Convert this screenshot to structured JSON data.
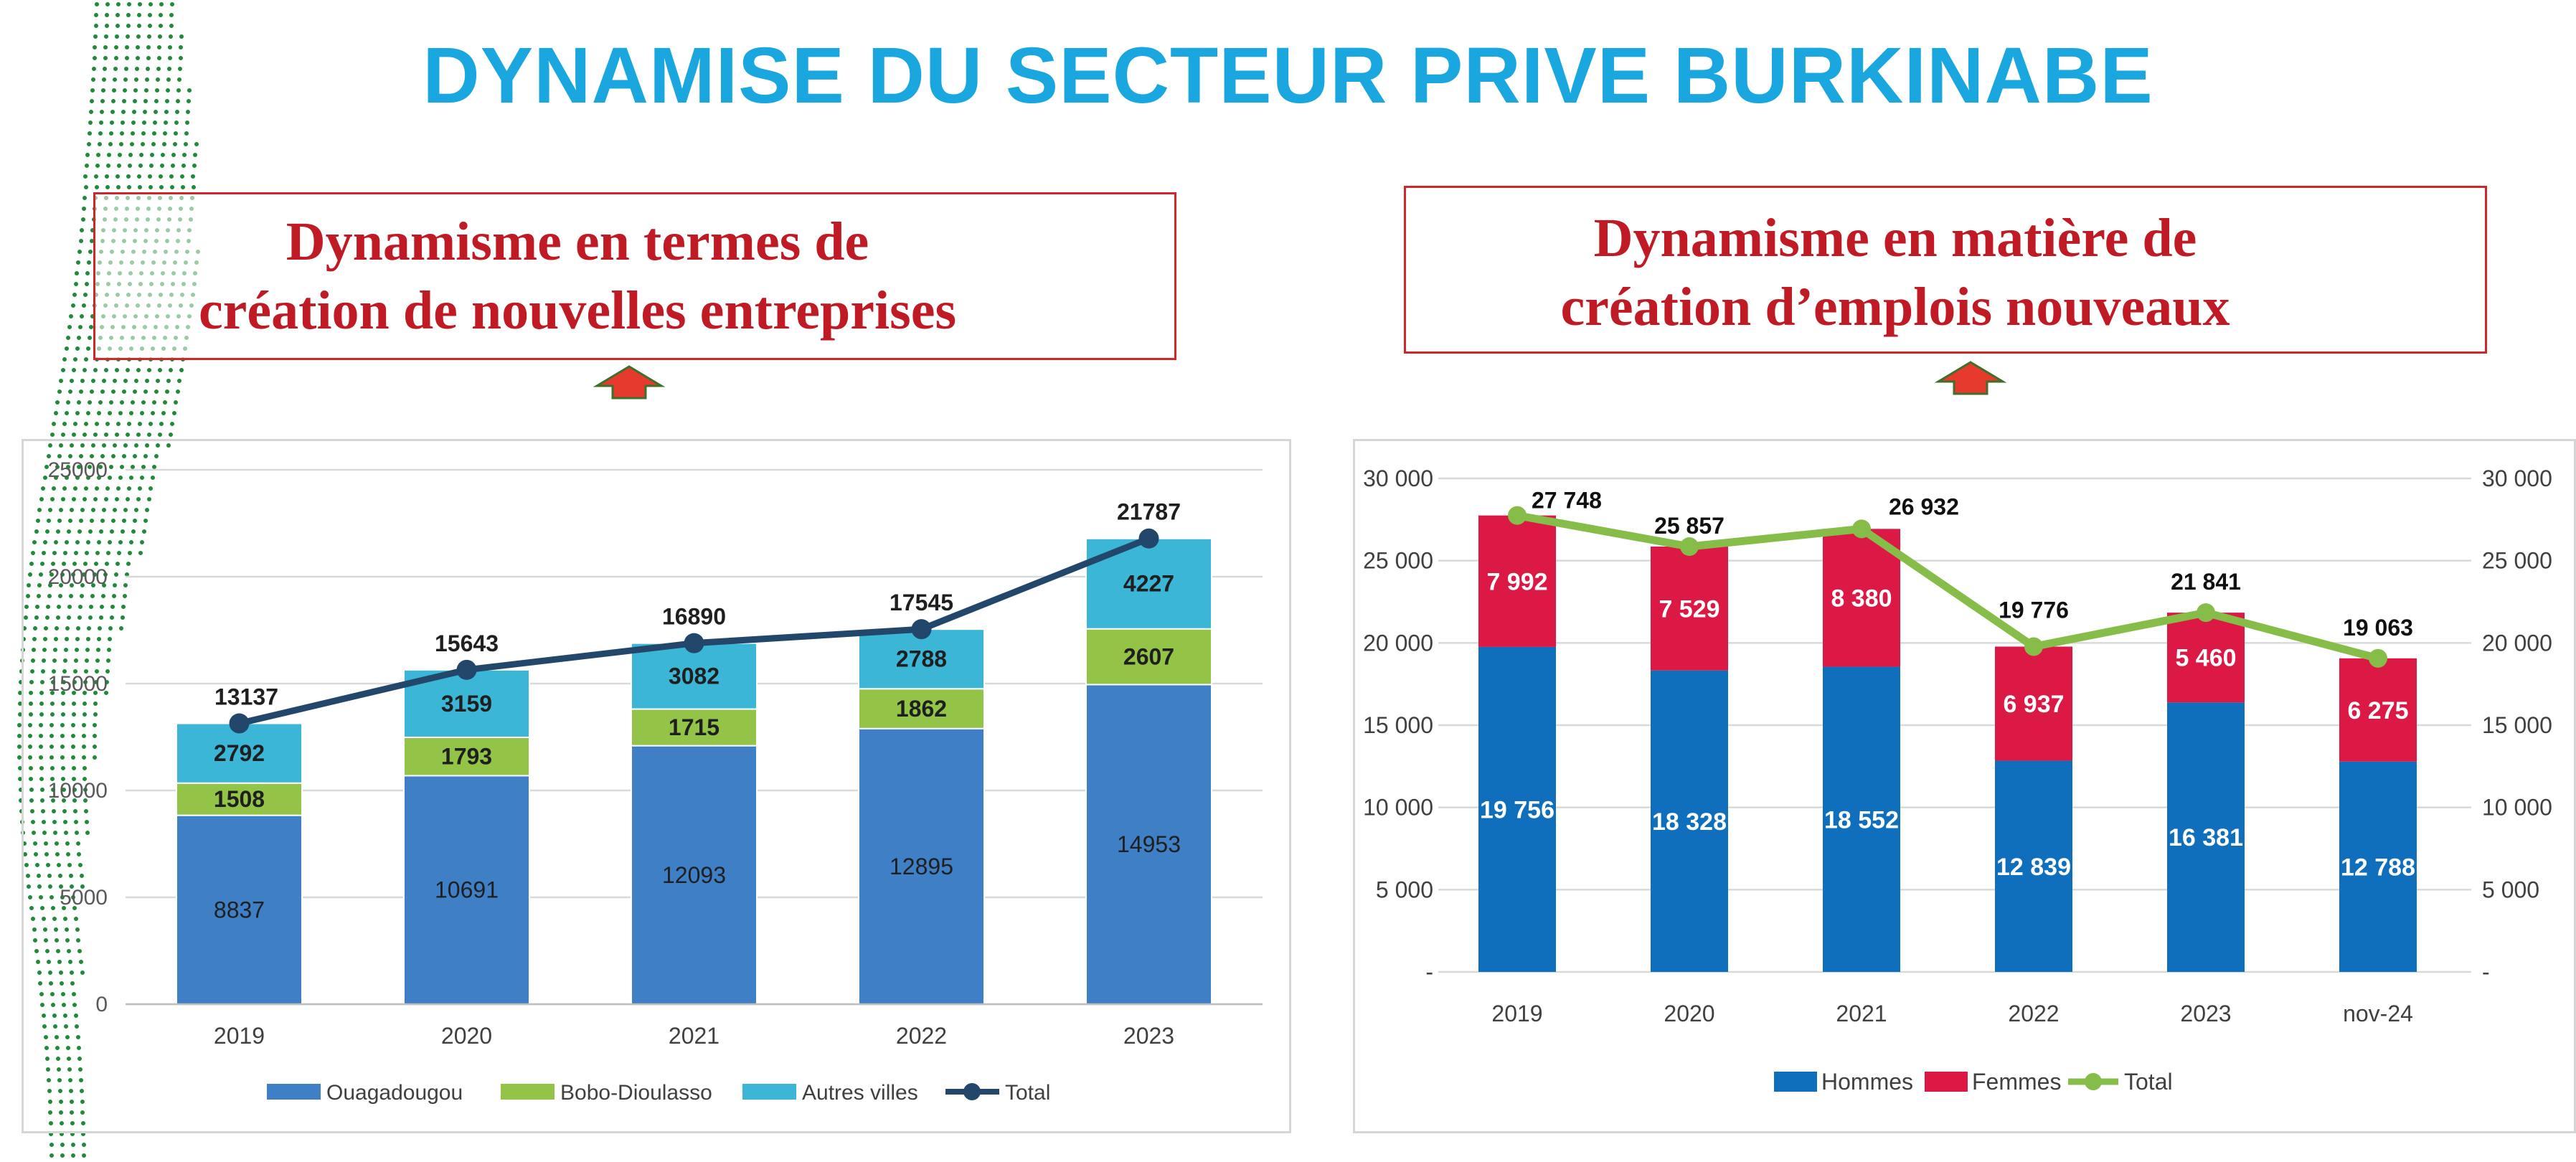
{
  "page": {
    "title": "DYNAMISE DU SECTEUR PRIVE BURKINABE",
    "left_heading": [
      "Dynamisme en termes de",
      "création de nouvelles entreprises"
    ],
    "right_heading": [
      "Dynamisme en matière de",
      "création d’emplois nouveaux"
    ]
  },
  "colors": {
    "title": "#1aa6df",
    "heading": "#c01b25",
    "ouagadougou": "#3f7fc6",
    "bobo": "#93c447",
    "autres": "#3bb6d6",
    "total_line_left": "#23476b",
    "hommes": "#0f6fbd",
    "femmes": "#dc1845",
    "total_line_right": "#86bd49",
    "dots": "#1f8a3a",
    "arrow": "#e53a2d"
  },
  "chart_data": [
    {
      "type": "bar",
      "stacked": true,
      "categories": [
        "2019",
        "2020",
        "2021",
        "2022",
        "2023"
      ],
      "series": [
        {
          "name": "Ouagadougou",
          "values": [
            8837,
            10691,
            12093,
            12895,
            14953
          ],
          "labels": [
            "8837",
            "10691",
            "12093",
            "12895",
            "14953"
          ]
        },
        {
          "name": "Bobo-Dioulasso",
          "values": [
            1508,
            1793,
            1715,
            1862,
            2607
          ],
          "labels": [
            "1508",
            "1793",
            "1715",
            "1862",
            "2607"
          ]
        },
        {
          "name": "Autres villes",
          "values": [
            2792,
            3159,
            3082,
            2788,
            4227
          ],
          "labels": [
            "2792",
            "3159",
            "3082",
            "2788",
            "4227"
          ]
        }
      ],
      "line": {
        "name": "Total",
        "values": [
          13137,
          15643,
          16890,
          17545,
          21787
        ],
        "labels": [
          "13137",
          "15643",
          "16890",
          "17545",
          "21787"
        ]
      },
      "ylim": [
        0,
        25000
      ],
      "yticks": [
        "0",
        "5000",
        "10000",
        "15000",
        "20000",
        "25000"
      ],
      "ytick_values": [
        0,
        5000,
        10000,
        15000,
        20000,
        25000
      ],
      "grid": true,
      "legend_position": "bottom"
    },
    {
      "type": "bar",
      "stacked": true,
      "categories": [
        "2019",
        "2020",
        "2021",
        "2022",
        "2023",
        "nov-24"
      ],
      "series": [
        {
          "name": "Hommes",
          "values": [
            19756,
            18328,
            18552,
            12839,
            16381,
            12788
          ],
          "labels": [
            "19 756",
            "18 328",
            "18 552",
            "12 839",
            "16 381",
            "12 788"
          ]
        },
        {
          "name": "Femmes",
          "values": [
            7992,
            7529,
            8380,
            6937,
            5460,
            6275
          ],
          "labels": [
            "7 992",
            "7 529",
            "8 380",
            "6 937",
            "5 460",
            "6 275"
          ]
        }
      ],
      "line": {
        "name": "Total",
        "values": [
          27748,
          25857,
          26932,
          19776,
          21841,
          19063
        ],
        "labels": [
          "27 748",
          "25 857",
          "26 932",
          "19 776",
          "21 841",
          "19 063"
        ]
      },
      "ylim": [
        0,
        30000
      ],
      "yticks": [
        "-",
        "5 000",
        "10 000",
        "15 000",
        "20 000",
        "25 000",
        "30 000"
      ],
      "ytick_values": [
        0,
        5000,
        10000,
        15000,
        20000,
        25000,
        30000
      ],
      "secondary_axis": true,
      "grid": true,
      "legend_position": "bottom"
    }
  ]
}
